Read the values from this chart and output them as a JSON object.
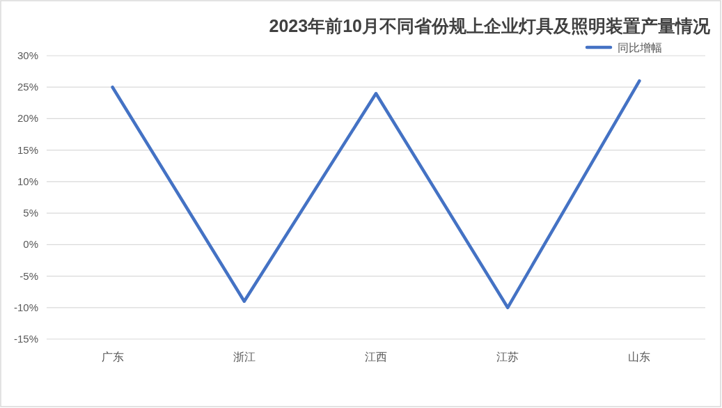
{
  "chart_data": {
    "type": "line",
    "title": "2023年前10月不同省份规上企业灯具及照明装置产量情况",
    "categories": [
      "广东",
      "浙江",
      "江西",
      "江苏",
      "山东"
    ],
    "series": [
      {
        "name": "同比增幅",
        "color": "#4472c4",
        "values": [
          25,
          -9,
          24,
          -10,
          26
        ]
      }
    ],
    "ylim": [
      -15,
      30
    ],
    "yticks": [
      {
        "value": -15,
        "label": "-15%"
      },
      {
        "value": -10,
        "label": "-10%"
      },
      {
        "value": -5,
        "label": "-5%"
      },
      {
        "value": 0,
        "label": "0%"
      },
      {
        "value": 5,
        "label": "5%"
      },
      {
        "value": 10,
        "label": "10%"
      },
      {
        "value": 15,
        "label": "15%"
      },
      {
        "value": 20,
        "label": "20%"
      },
      {
        "value": 25,
        "label": "25%"
      },
      {
        "value": 30,
        "label": "30%"
      }
    ],
    "grid": "y",
    "legend": "top right",
    "line_style": "solid"
  }
}
